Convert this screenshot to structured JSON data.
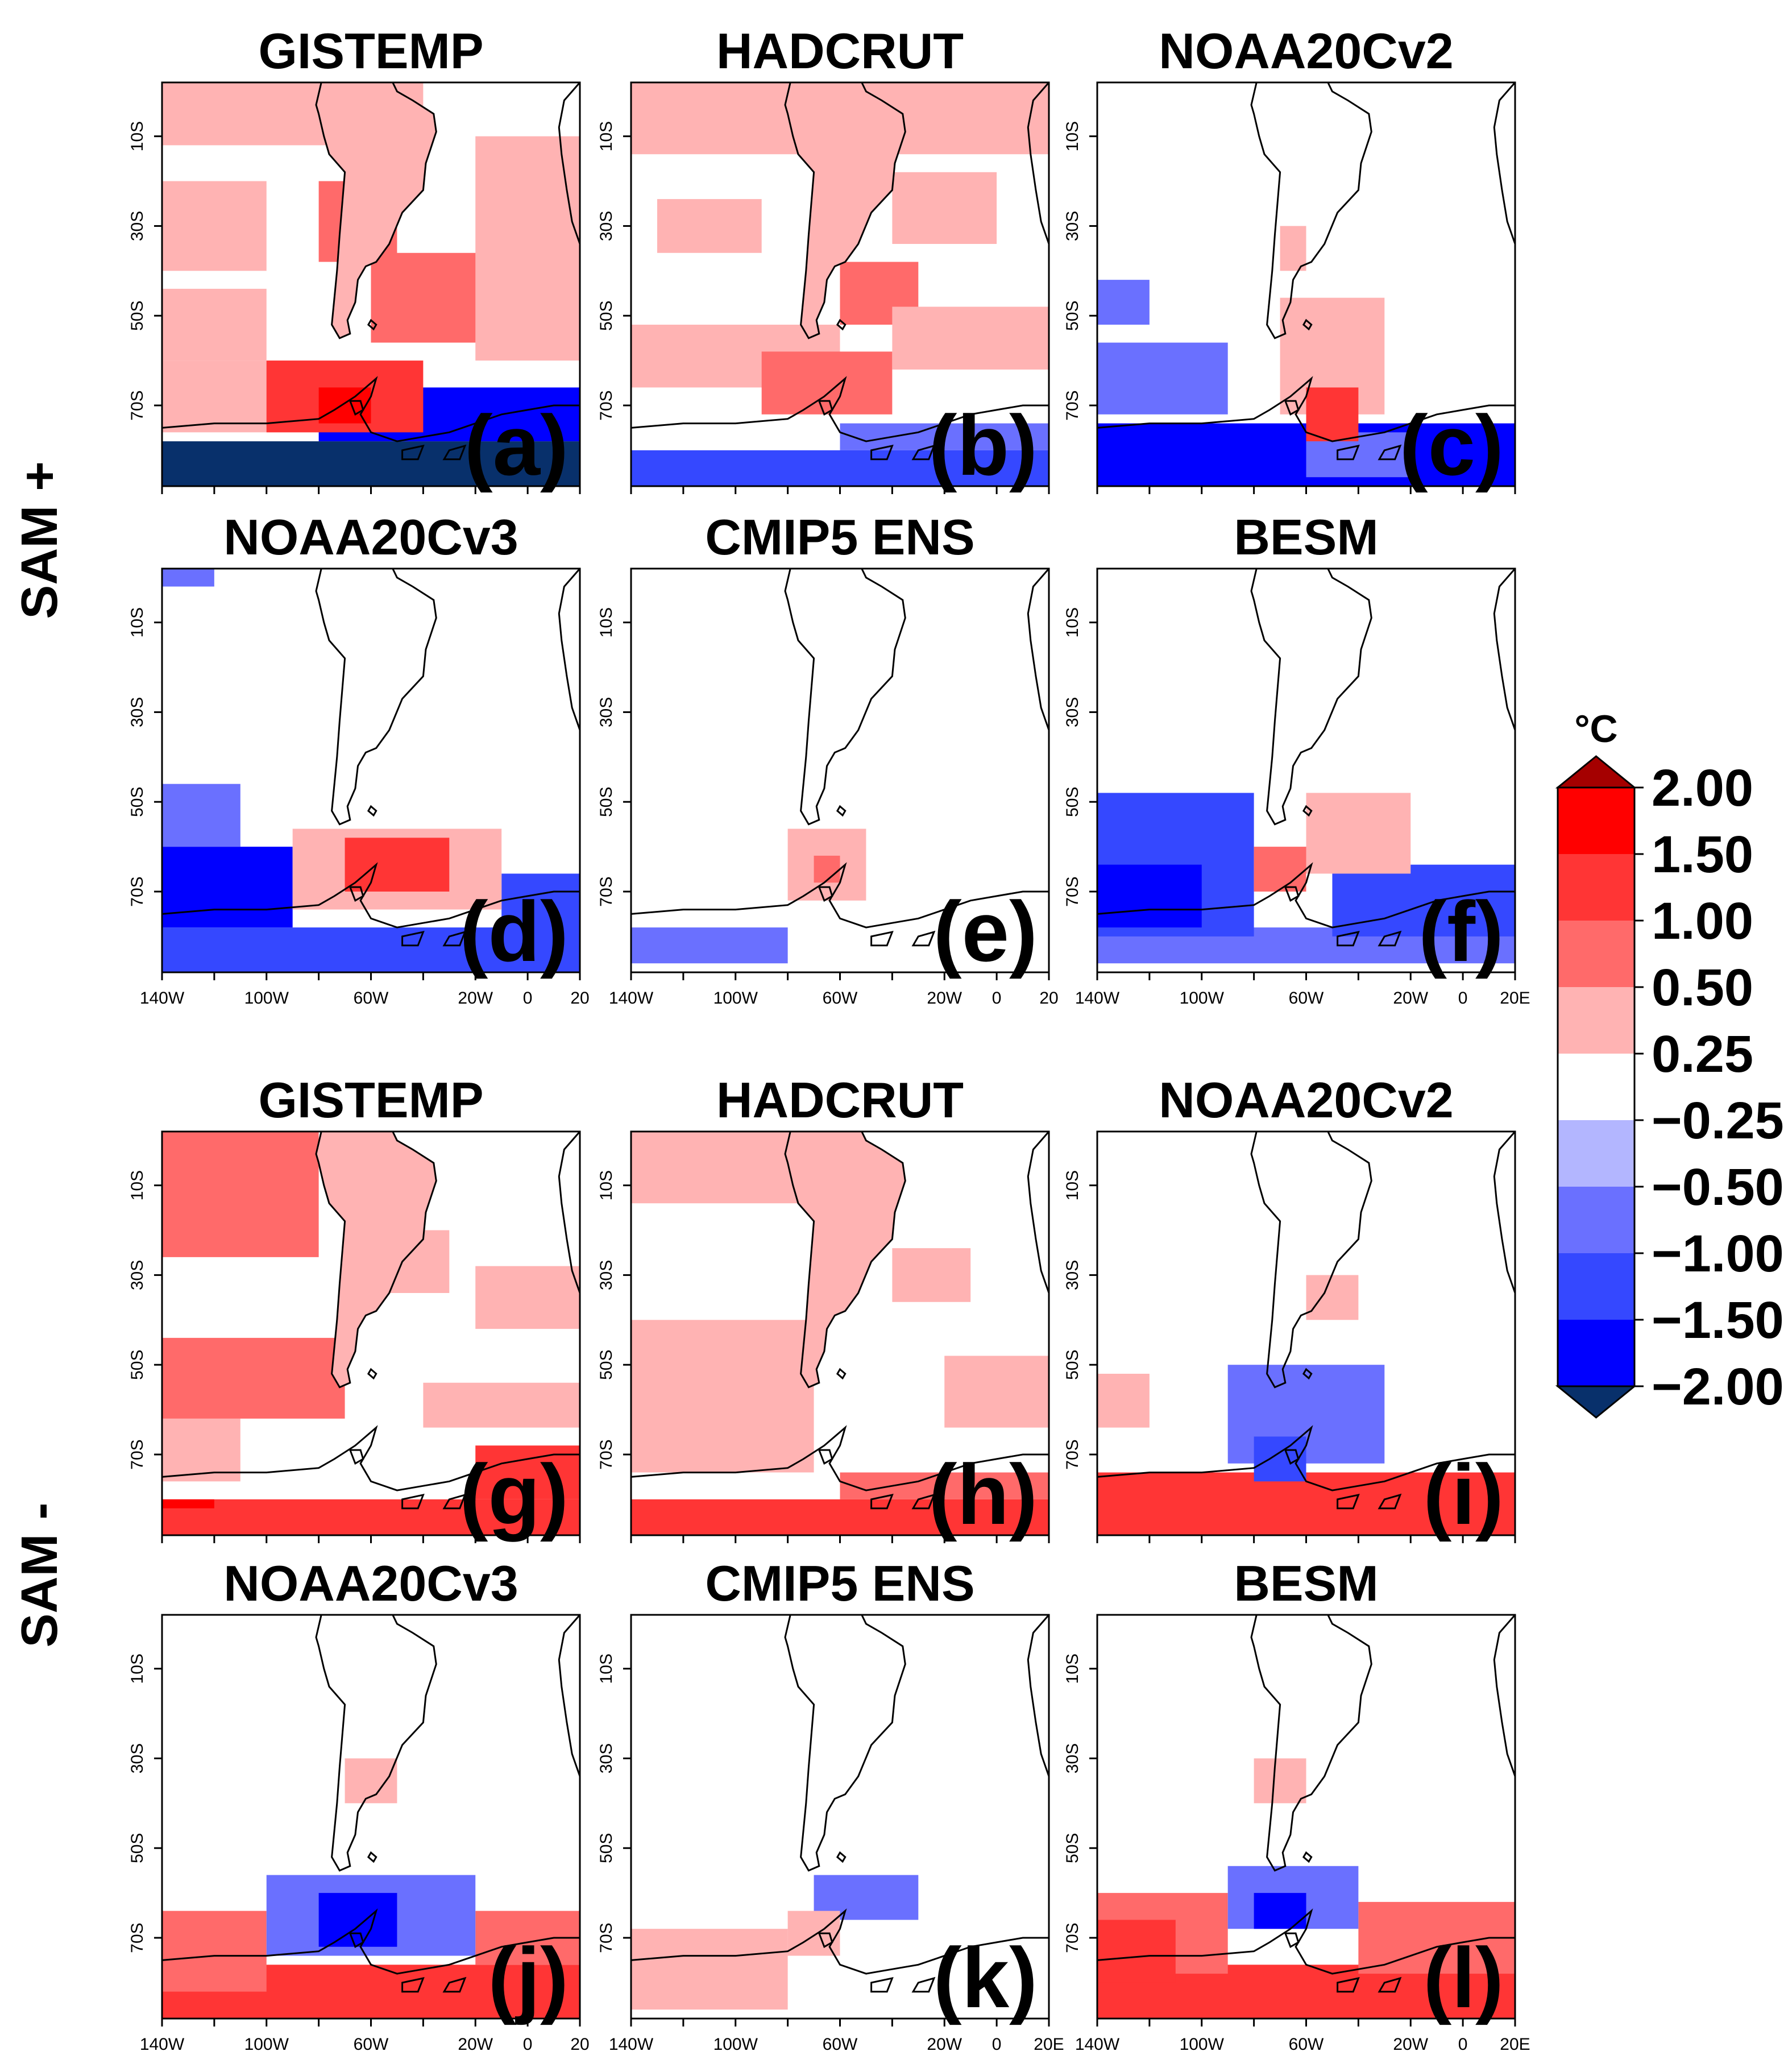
{
  "figure": {
    "row_labels": [
      "SAM +",
      "SAM -"
    ]
  },
  "colors": {
    "levels": [
      "#08306b",
      "#0000ff",
      "#3548ff",
      "#6a70ff",
      "#b3b6ff",
      "#ffffff",
      "#ffb3b3",
      "#ff6a6a",
      "#ff3535",
      "#ff0000",
      "#a50000"
    ],
    "coast": "#000000"
  },
  "chart_data": {
    "type": "heatmap",
    "description_units": "temperature anomaly (°C)",
    "xaxis": {
      "ticks": [
        "140W",
        "100W",
        "60W",
        "20W",
        "0",
        "20"
      ],
      "ticks_alt": [
        "140W",
        "100W",
        "60W",
        "20W",
        "0",
        "20E"
      ],
      "range": [
        -140,
        20
      ]
    },
    "yaxis": {
      "ticks": [
        "10S",
        "30S",
        "50S",
        "70S"
      ],
      "range": [
        -88,
        2
      ]
    },
    "colorbar": {
      "unit": "°C",
      "tick_labels": [
        "2.00",
        "1.50",
        "1.00",
        "0.50",
        "0.25",
        "-0.25",
        "-0.50",
        "-1.00",
        "-1.50",
        "-2.00"
      ],
      "levels": [
        -2.0,
        -1.5,
        -1.0,
        -0.5,
        -0.25,
        0.25,
        0.5,
        1.0,
        1.5,
        2.0
      ]
    },
    "panels": [
      {
        "title": "GISTEMP",
        "label": "(a)",
        "row": "SAM +",
        "land_level": 1,
        "regions": [
          {
            "lon": [
              -140,
              20
            ],
            "lat": [
              -88,
              -78
            ],
            "level": -5
          },
          {
            "lon": [
              -80,
              20
            ],
            "lat": [
              -78,
              -66
            ],
            "level": -4
          },
          {
            "lon": [
              -140,
              -80
            ],
            "lat": [
              -76,
              -60
            ],
            "level": 1
          },
          {
            "lon": [
              -100,
              -40
            ],
            "lat": [
              -76,
              -60
            ],
            "level": 3
          },
          {
            "lon": [
              -80,
              -60
            ],
            "lat": [
              -74,
              -66
            ],
            "level": 4
          },
          {
            "lon": [
              -140,
              -100
            ],
            "lat": [
              -40,
              -20
            ],
            "level": 1
          },
          {
            "lon": [
              -60,
              -10
            ],
            "lat": [
              -56,
              -36
            ],
            "level": 2
          },
          {
            "lon": [
              -80,
              -50
            ],
            "lat": [
              -38,
              -20
            ],
            "level": 2
          },
          {
            "lon": [
              -20,
              20
            ],
            "lat": [
              -60,
              -10
            ],
            "level": 1
          },
          {
            "lon": [
              -140,
              -100
            ],
            "lat": [
              -60,
              -44
            ],
            "level": 1
          },
          {
            "lon": [
              -140,
              -40
            ],
            "lat": [
              -12,
              2
            ],
            "level": 1
          }
        ]
      },
      {
        "title": "HADCRUT",
        "label": "(b)",
        "row": "SAM +",
        "land_level": 1,
        "regions": [
          {
            "lon": [
              -140,
              20
            ],
            "lat": [
              -88,
              -80
            ],
            "level": -3
          },
          {
            "lon": [
              -60,
              20
            ],
            "lat": [
              -80,
              -74
            ],
            "level": -2
          },
          {
            "lon": [
              -140,
              -60
            ],
            "lat": [
              -66,
              -52
            ],
            "level": 1
          },
          {
            "lon": [
              -90,
              -40
            ],
            "lat": [
              -72,
              -58
            ],
            "level": 2
          },
          {
            "lon": [
              -60,
              -30
            ],
            "lat": [
              -52,
              -38
            ],
            "level": 2
          },
          {
            "lon": [
              -40,
              20
            ],
            "lat": [
              -62,
              -48
            ],
            "level": 1
          },
          {
            "lon": [
              -130,
              -90
            ],
            "lat": [
              -36,
              -24
            ],
            "level": 1
          },
          {
            "lon": [
              -140,
              20
            ],
            "lat": [
              -14,
              2
            ],
            "level": 1
          },
          {
            "lon": [
              -40,
              0
            ],
            "lat": [
              -34,
              -18
            ],
            "level": 1
          }
        ]
      },
      {
        "title": "NOAA20Cv2",
        "label": "(c)",
        "row": "SAM +",
        "land_level": 0,
        "regions": [
          {
            "lon": [
              -140,
              20
            ],
            "lat": [
              -88,
              -74
            ],
            "level": -4
          },
          {
            "lon": [
              -60,
              -20
            ],
            "lat": [
              -86,
              -76
            ],
            "level": -2
          },
          {
            "lon": [
              -140,
              -90
            ],
            "lat": [
              -72,
              -56
            ],
            "level": -2
          },
          {
            "lon": [
              -140,
              -120
            ],
            "lat": [
              -52,
              -42
            ],
            "level": -2
          },
          {
            "lon": [
              -70,
              -30
            ],
            "lat": [
              -72,
              -46
            ],
            "level": 1
          },
          {
            "lon": [
              -60,
              -40
            ],
            "lat": [
              -78,
              -66
            ],
            "level": 3
          },
          {
            "lon": [
              -70,
              -60
            ],
            "lat": [
              -40,
              -30
            ],
            "level": 1
          }
        ]
      },
      {
        "title": "NOAA20Cv3",
        "label": "(d)",
        "row": "SAM +",
        "land_level": 0,
        "regions": [
          {
            "lon": [
              -140,
              20
            ],
            "lat": [
              -88,
              -78
            ],
            "level": -3
          },
          {
            "lon": [
              -140,
              -90
            ],
            "lat": [
              -78,
              -60
            ],
            "level": -4
          },
          {
            "lon": [
              -140,
              -110
            ],
            "lat": [
              -60,
              -46
            ],
            "level": -2
          },
          {
            "lon": [
              -10,
              20
            ],
            "lat": [
              -80,
              -66
            ],
            "level": -3
          },
          {
            "lon": [
              -90,
              -10
            ],
            "lat": [
              -74,
              -56
            ],
            "level": 1
          },
          {
            "lon": [
              -70,
              -30
            ],
            "lat": [
              -70,
              -58
            ],
            "level": 3
          },
          {
            "lon": [
              -140,
              -120
            ],
            "lat": [
              2,
              -2
            ],
            "level": -2
          }
        ]
      },
      {
        "title": "CMIP5 ENS",
        "label": "(e)",
        "row": "SAM +",
        "land_level": 0,
        "regions": [
          {
            "lon": [
              -140,
              -80
            ],
            "lat": [
              -86,
              -78
            ],
            "level": -2
          },
          {
            "lon": [
              -80,
              -50
            ],
            "lat": [
              -72,
              -56
            ],
            "level": 1
          },
          {
            "lon": [
              -70,
              -60
            ],
            "lat": [
              -68,
              -62
            ],
            "level": 2
          }
        ]
      },
      {
        "title": "BESM",
        "label": "(f)",
        "row": "SAM +",
        "land_level": 0,
        "regions": [
          {
            "lon": [
              -140,
              20
            ],
            "lat": [
              -86,
              -78
            ],
            "level": -2
          },
          {
            "lon": [
              -140,
              -80
            ],
            "lat": [
              -80,
              -48
            ],
            "level": -3
          },
          {
            "lon": [
              -140,
              -100
            ],
            "lat": [
              -78,
              -64
            ],
            "level": -4
          },
          {
            "lon": [
              -50,
              20
            ],
            "lat": [
              -80,
              -64
            ],
            "level": -3
          },
          {
            "lon": [
              -60,
              -20
            ],
            "lat": [
              -66,
              -48
            ],
            "level": 1
          },
          {
            "lon": [
              -80,
              -60
            ],
            "lat": [
              -70,
              -60
            ],
            "level": 2
          }
        ]
      },
      {
        "title": "GISTEMP",
        "label": "(g)",
        "row": "SAM -",
        "land_level": 1,
        "regions": [
          {
            "lon": [
              -140,
              20
            ],
            "lat": [
              -88,
              -80
            ],
            "level": 3
          },
          {
            "lon": [
              -140,
              -120
            ],
            "lat": [
              -82,
              -80
            ],
            "level": 4
          },
          {
            "lon": [
              -20,
              20
            ],
            "lat": [
              -80,
              -68
            ],
            "level": 3
          },
          {
            "lon": [
              -140,
              -110
            ],
            "lat": [
              -76,
              -62
            ],
            "level": 1
          },
          {
            "lon": [
              -140,
              -70
            ],
            "lat": [
              -62,
              -44
            ],
            "level": 2
          },
          {
            "lon": [
              -140,
              -80
            ],
            "lat": [
              -26,
              2
            ],
            "level": 2
          },
          {
            "lon": [
              -60,
              -30
            ],
            "lat": [
              -34,
              -20
            ],
            "level": 1
          },
          {
            "lon": [
              -40,
              20
            ],
            "lat": [
              -64,
              -54
            ],
            "level": 1
          },
          {
            "lon": [
              -20,
              20
            ],
            "lat": [
              -42,
              -28
            ],
            "level": 1
          }
        ]
      },
      {
        "title": "HADCRUT",
        "label": "(h)",
        "row": "SAM -",
        "land_level": 1,
        "regions": [
          {
            "lon": [
              -140,
              20
            ],
            "lat": [
              -88,
              -80
            ],
            "level": 3
          },
          {
            "lon": [
              -60,
              20
            ],
            "lat": [
              -80,
              -74
            ],
            "level": 2
          },
          {
            "lon": [
              -140,
              -70
            ],
            "lat": [
              -74,
              -40
            ],
            "level": 1
          },
          {
            "lon": [
              -20,
              20
            ],
            "lat": [
              -64,
              -48
            ],
            "level": 1
          },
          {
            "lon": [
              -40,
              -10
            ],
            "lat": [
              -36,
              -24
            ],
            "level": 1
          },
          {
            "lon": [
              -140,
              -70
            ],
            "lat": [
              -14,
              2
            ],
            "level": 1
          }
        ]
      },
      {
        "title": "NOAA20Cv2",
        "label": "(i)",
        "row": "SAM -",
        "land_level": 0,
        "regions": [
          {
            "lon": [
              -140,
              20
            ],
            "lat": [
              -88,
              -74
            ],
            "level": 3
          },
          {
            "lon": [
              -90,
              -30
            ],
            "lat": [
              -72,
              -50
            ],
            "level": -2
          },
          {
            "lon": [
              -80,
              -60
            ],
            "lat": [
              -76,
              -66
            ],
            "level": -3
          },
          {
            "lon": [
              -140,
              -120
            ],
            "lat": [
              -64,
              -52
            ],
            "level": 1
          },
          {
            "lon": [
              -60,
              -40
            ],
            "lat": [
              -40,
              -30
            ],
            "level": 1
          }
        ]
      },
      {
        "title": "NOAA20Cv3",
        "label": "(j)",
        "row": "SAM -",
        "land_level": 0,
        "regions": [
          {
            "lon": [
              -140,
              20
            ],
            "lat": [
              -88,
              -76
            ],
            "level": 3
          },
          {
            "lon": [
              -20,
              20
            ],
            "lat": [
              -76,
              -64
            ],
            "level": 2
          },
          {
            "lon": [
              -140,
              -100
            ],
            "lat": [
              -82,
              -64
            ],
            "level": 2
          },
          {
            "lon": [
              -100,
              -20
            ],
            "lat": [
              -74,
              -56
            ],
            "level": -2
          },
          {
            "lon": [
              -80,
              -50
            ],
            "lat": [
              -72,
              -60
            ],
            "level": -4
          },
          {
            "lon": [
              -70,
              -50
            ],
            "lat": [
              -40,
              -30
            ],
            "level": 1
          }
        ]
      },
      {
        "title": "CMIP5 ENS",
        "label": "(k)",
        "row": "SAM -",
        "land_level": 0,
        "regions": [
          {
            "lon": [
              -140,
              -80
            ],
            "lat": [
              -86,
              -68
            ],
            "level": 1
          },
          {
            "lon": [
              -70,
              -30
            ],
            "lat": [
              -66,
              -56
            ],
            "level": -2
          },
          {
            "lon": [
              -80,
              -60
            ],
            "lat": [
              -74,
              -64
            ],
            "level": 1
          }
        ]
      },
      {
        "title": "BESM",
        "label": "(l)",
        "row": "SAM -",
        "land_level": 0,
        "regions": [
          {
            "lon": [
              -140,
              20
            ],
            "lat": [
              -88,
              -76
            ],
            "level": 3
          },
          {
            "lon": [
              -140,
              -90
            ],
            "lat": [
              -78,
              -60
            ],
            "level": 2
          },
          {
            "lon": [
              -140,
              -110
            ],
            "lat": [
              -80,
              -66
            ],
            "level": 3
          },
          {
            "lon": [
              -40,
              20
            ],
            "lat": [
              -78,
              -62
            ],
            "level": 2
          },
          {
            "lon": [
              -90,
              -40
            ],
            "lat": [
              -68,
              -54
            ],
            "level": -2
          },
          {
            "lon": [
              -80,
              -60
            ],
            "lat": [
              -68,
              -60
            ],
            "level": -4
          },
          {
            "lon": [
              -80,
              -60
            ],
            "lat": [
              -40,
              -30
            ],
            "level": 1
          }
        ]
      }
    ]
  }
}
